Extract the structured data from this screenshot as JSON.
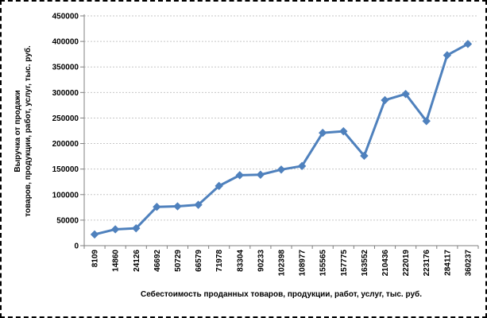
{
  "chart_data": {
    "type": "line",
    "title": "",
    "xlabel": "Себестоимость проданных товаров, продукции, работ, услуг, тыс. руб.",
    "ylabel": "Выручка от продажи товаров, продукции, работ, услуг, тыс. руб.",
    "ylabel_lines": [
      "Выручка от продажи",
      "товаров, продукции, работ, услуг, тыс. руб."
    ],
    "categories": [
      "8109",
      "14860",
      "24126",
      "46692",
      "50729",
      "66579",
      "71978",
      "83304",
      "90233",
      "102398",
      "108977",
      "155565",
      "157775",
      "163552",
      "210436",
      "222019",
      "223176",
      "284117",
      "360237"
    ],
    "values": [
      22000,
      32000,
      34000,
      76000,
      77000,
      80000,
      117000,
      138000,
      139000,
      149000,
      156000,
      221000,
      224000,
      176000,
      285000,
      297000,
      244000,
      373000,
      395000
    ],
    "ylim": [
      0,
      450000
    ],
    "ytick_step": 50000,
    "ytick_labels": [
      "0",
      "50000",
      "100000",
      "150000",
      "200000",
      "250000",
      "300000",
      "350000",
      "400000",
      "450000"
    ],
    "grid": true,
    "legend": "none",
    "marker": "diamond",
    "line_color": "#4F81BD",
    "gridline_color": "#C6C6C6",
    "axis_color": "#7F7F7F"
  }
}
